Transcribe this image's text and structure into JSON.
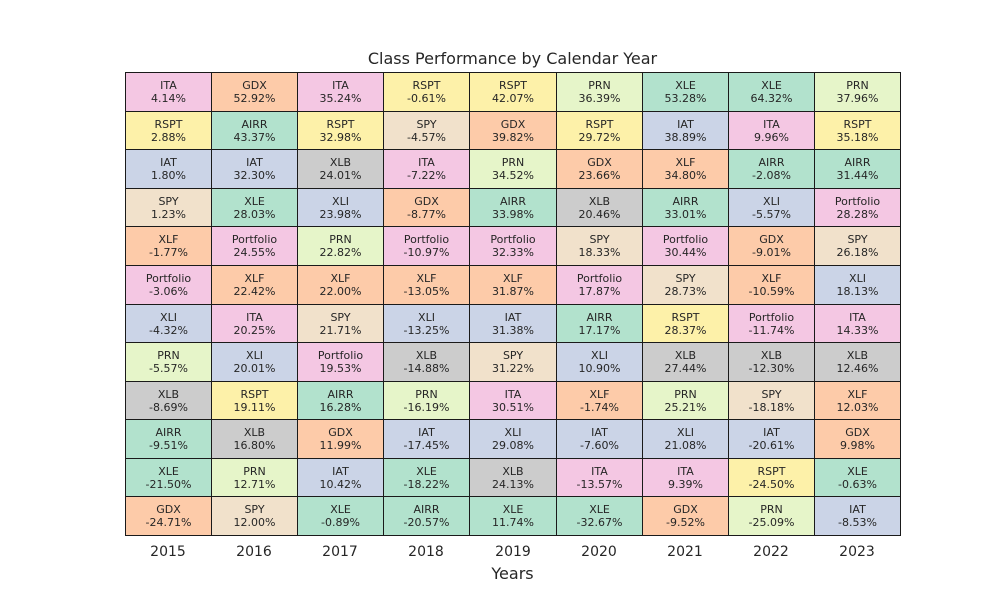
{
  "chart_data": {
    "type": "table",
    "title": "Class Performance by Calendar Year",
    "xlabel": "Years",
    "years": [
      "2015",
      "2016",
      "2017",
      "2018",
      "2019",
      "2020",
      "2021",
      "2022",
      "2023"
    ],
    "columns": [
      [
        [
          "ITA",
          "4.14%"
        ],
        [
          "RSPT",
          "2.88%"
        ],
        [
          "IAT",
          "1.80%"
        ],
        [
          "SPY",
          "1.23%"
        ],
        [
          "XLF",
          "-1.77%"
        ],
        [
          "Portfolio",
          "-3.06%"
        ],
        [
          "XLI",
          "-4.32%"
        ],
        [
          "PRN",
          "-5.57%"
        ],
        [
          "XLB",
          "-8.69%"
        ],
        [
          "AIRR",
          "-9.51%"
        ],
        [
          "XLE",
          "-21.50%"
        ],
        [
          "GDX",
          "-24.71%"
        ]
      ],
      [
        [
          "GDX",
          "52.92%"
        ],
        [
          "AIRR",
          "43.37%"
        ],
        [
          "IAT",
          "32.30%"
        ],
        [
          "XLE",
          "28.03%"
        ],
        [
          "Portfolio",
          "24.55%"
        ],
        [
          "XLF",
          "22.42%"
        ],
        [
          "ITA",
          "20.25%"
        ],
        [
          "XLI",
          "20.01%"
        ],
        [
          "RSPT",
          "19.11%"
        ],
        [
          "XLB",
          "16.80%"
        ],
        [
          "PRN",
          "12.71%"
        ],
        [
          "SPY",
          "12.00%"
        ]
      ],
      [
        [
          "ITA",
          "35.24%"
        ],
        [
          "RSPT",
          "32.98%"
        ],
        [
          "XLB",
          "24.01%"
        ],
        [
          "XLI",
          "23.98%"
        ],
        [
          "PRN",
          "22.82%"
        ],
        [
          "XLF",
          "22.00%"
        ],
        [
          "SPY",
          "21.71%"
        ],
        [
          "Portfolio",
          "19.53%"
        ],
        [
          "AIRR",
          "16.28%"
        ],
        [
          "GDX",
          "11.99%"
        ],
        [
          "IAT",
          "10.42%"
        ],
        [
          "XLE",
          "-0.89%"
        ]
      ],
      [
        [
          "RSPT",
          "-0.61%"
        ],
        [
          "SPY",
          "-4.57%"
        ],
        [
          "ITA",
          "-7.22%"
        ],
        [
          "GDX",
          "-8.77%"
        ],
        [
          "Portfolio",
          "-10.97%"
        ],
        [
          "XLF",
          "-13.05%"
        ],
        [
          "XLI",
          "-13.25%"
        ],
        [
          "XLB",
          "-14.88%"
        ],
        [
          "PRN",
          "-16.19%"
        ],
        [
          "IAT",
          "-17.45%"
        ],
        [
          "XLE",
          "-18.22%"
        ],
        [
          "AIRR",
          "-20.57%"
        ]
      ],
      [
        [
          "RSPT",
          "42.07%"
        ],
        [
          "GDX",
          "39.82%"
        ],
        [
          "PRN",
          "34.52%"
        ],
        [
          "AIRR",
          "33.98%"
        ],
        [
          "Portfolio",
          "32.33%"
        ],
        [
          "XLF",
          "31.87%"
        ],
        [
          "IAT",
          "31.38%"
        ],
        [
          "SPY",
          "31.22%"
        ],
        [
          "ITA",
          "30.51%"
        ],
        [
          "XLI",
          "29.08%"
        ],
        [
          "XLB",
          "24.13%"
        ],
        [
          "XLE",
          "11.74%"
        ]
      ],
      [
        [
          "PRN",
          "36.39%"
        ],
        [
          "RSPT",
          "29.72%"
        ],
        [
          "GDX",
          "23.66%"
        ],
        [
          "XLB",
          "20.46%"
        ],
        [
          "SPY",
          "18.33%"
        ],
        [
          "Portfolio",
          "17.87%"
        ],
        [
          "AIRR",
          "17.17%"
        ],
        [
          "XLI",
          "10.90%"
        ],
        [
          "XLF",
          "-1.74%"
        ],
        [
          "IAT",
          "-7.60%"
        ],
        [
          "ITA",
          "-13.57%"
        ],
        [
          "XLE",
          "-32.67%"
        ]
      ],
      [
        [
          "XLE",
          "53.28%"
        ],
        [
          "IAT",
          "38.89%"
        ],
        [
          "XLF",
          "34.80%"
        ],
        [
          "AIRR",
          "33.01%"
        ],
        [
          "Portfolio",
          "30.44%"
        ],
        [
          "SPY",
          "28.73%"
        ],
        [
          "RSPT",
          "28.37%"
        ],
        [
          "XLB",
          "27.44%"
        ],
        [
          "PRN",
          "25.21%"
        ],
        [
          "XLI",
          "21.08%"
        ],
        [
          "ITA",
          "9.39%"
        ],
        [
          "GDX",
          "-9.52%"
        ]
      ],
      [
        [
          "XLE",
          "64.32%"
        ],
        [
          "ITA",
          "9.96%"
        ],
        [
          "AIRR",
          "-2.08%"
        ],
        [
          "XLI",
          "-5.57%"
        ],
        [
          "GDX",
          "-9.01%"
        ],
        [
          "XLF",
          "-10.59%"
        ],
        [
          "Portfolio",
          "-11.74%"
        ],
        [
          "XLB",
          "-12.30%"
        ],
        [
          "SPY",
          "-18.18%"
        ],
        [
          "IAT",
          "-20.61%"
        ],
        [
          "RSPT",
          "-24.50%"
        ],
        [
          "PRN",
          "-25.09%"
        ]
      ],
      [
        [
          "PRN",
          "37.96%"
        ],
        [
          "RSPT",
          "35.18%"
        ],
        [
          "AIRR",
          "31.44%"
        ],
        [
          "Portfolio",
          "28.28%"
        ],
        [
          "SPY",
          "26.18%"
        ],
        [
          "XLI",
          "18.13%"
        ],
        [
          "ITA",
          "14.33%"
        ],
        [
          "XLB",
          "12.46%"
        ],
        [
          "XLF",
          "12.03%"
        ],
        [
          "GDX",
          "9.98%"
        ],
        [
          "XLE",
          "-0.63%"
        ],
        [
          "IAT",
          "-8.53%"
        ]
      ]
    ],
    "colors": {
      "ITA": "#f4c7e3",
      "Portfolio": "#f4c7e3",
      "GDX": "#fdcba9",
      "XLF": "#fdcba9",
      "RSPT": "#fdf1a9",
      "IAT": "#cbd4e7",
      "XLI": "#cbd4e7",
      "SPY": "#f1e1cb",
      "AIRR": "#b2e2cd",
      "XLE": "#b2e2cd",
      "XLB": "#cccccc",
      "PRN": "#e6f5c9"
    },
    "grid_border_color": "#1a1a1a"
  }
}
